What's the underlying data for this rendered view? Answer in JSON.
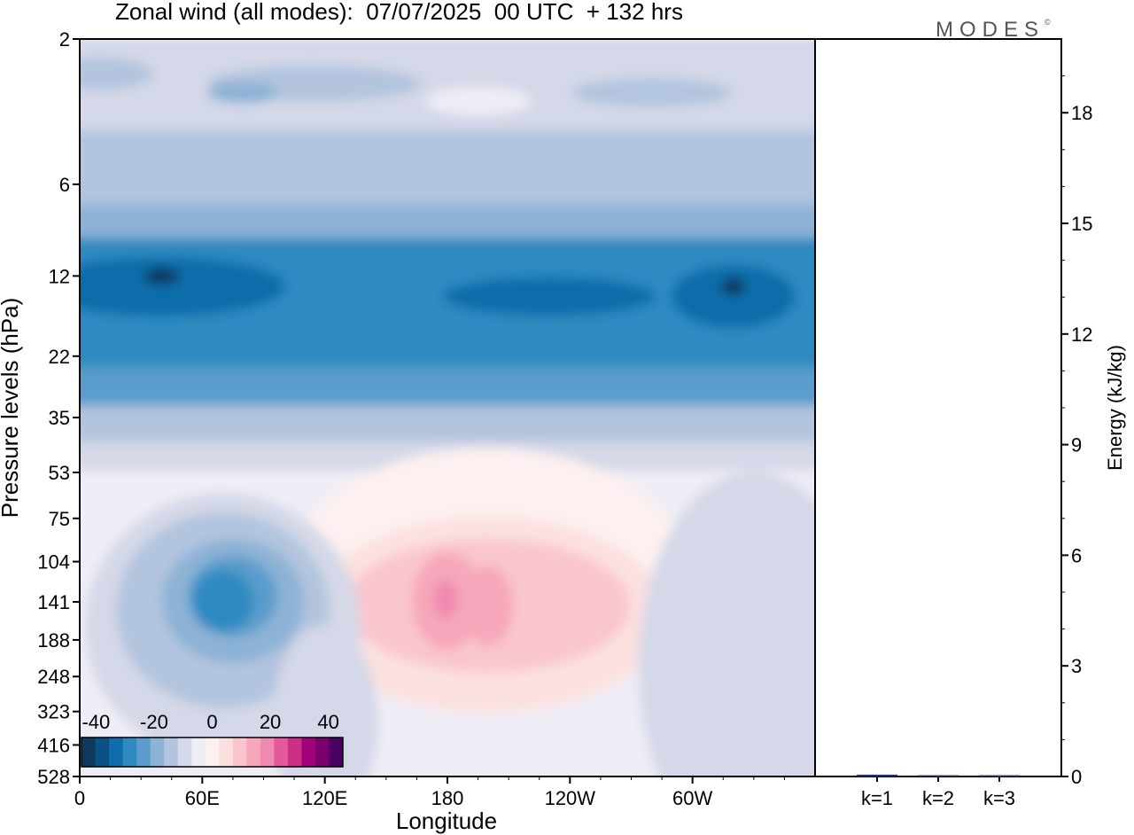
{
  "title": "Zonal wind (all modes):  07/07/2025  00 UTC  + 132 hrs",
  "logo": "MODES",
  "logo_mark": "©",
  "colors": [
    "#0d3a5e",
    "#0a5184",
    "#0e6daa",
    "#2f8ac1",
    "#5a9ccb",
    "#8cb2d5",
    "#b2c4de",
    "#d4d8e8",
    "#efedf5",
    "#fdf0f0",
    "#fce0e0",
    "#f9c6ce",
    "#f7a7bb",
    "#f089b0",
    "#e4589c",
    "#cc2f86",
    "#a2007a",
    "#79006d",
    "#4a0060"
  ],
  "chart_data": [
    {
      "type": "heatmap",
      "title": "Zonal wind (all modes):  07/07/2025  00 UTC  + 132 hrs",
      "xlabel": "Longitude",
      "ylabel": "Pressure levels (hPa)",
      "x_ticks": [
        "0",
        "60E",
        "120E",
        "180",
        "120W",
        "60W"
      ],
      "y_ticks": [
        "2",
        "6",
        "12",
        "22",
        "35",
        "53",
        "75",
        "104",
        "141",
        "188",
        "248",
        "323",
        "416",
        "528"
      ],
      "colorbar_ticks": [
        "-40",
        "-20",
        "0",
        "20",
        "40"
      ],
      "colorbar_range": [
        -45,
        45
      ],
      "features": [
        {
          "lon": 40,
          "p": 12,
          "u": -40
        },
        {
          "lon": 75,
          "p": 141,
          "u": -26
        },
        {
          "lon": 178,
          "p": 141,
          "u": 33
        },
        {
          "lon": 200,
          "p": 141,
          "u": 25
        },
        {
          "lon": 240,
          "p": 141,
          "u": 18
        }
      ]
    },
    {
      "type": "bar",
      "categories": [
        "k=1",
        "k=2",
        "k=3"
      ],
      "values": [
        0.05,
        0.03,
        0.02
      ],
      "ylabel": "Energy (kJ/kg)",
      "ylim": [
        0,
        20
      ],
      "y_ticks": [
        "0",
        "3",
        "6",
        "9",
        "12",
        "15",
        "18"
      ]
    }
  ]
}
